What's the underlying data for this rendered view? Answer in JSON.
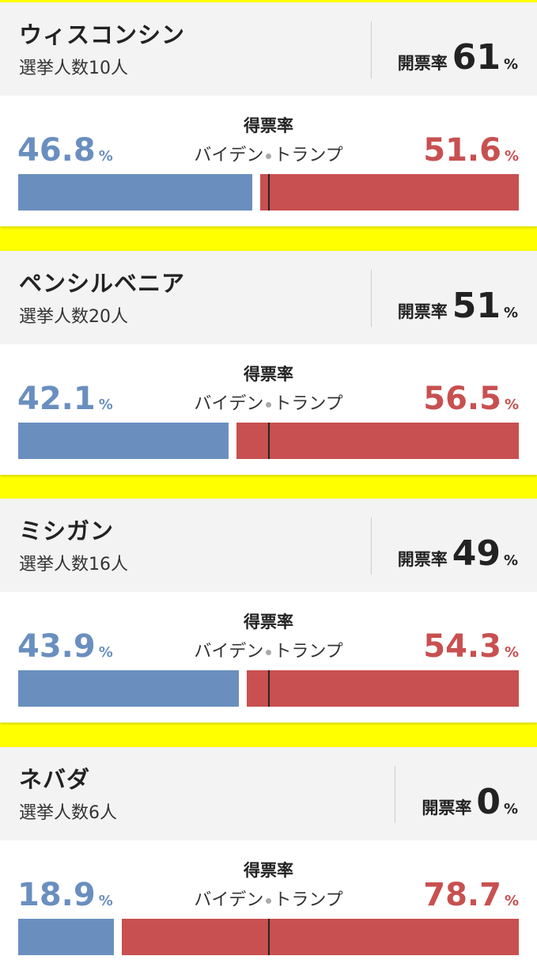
{
  "colors": {
    "biden": "#6a8fbf",
    "trump": "#c85050",
    "highlight": "#ffff00"
  },
  "labels": {
    "vs_title": "得票率",
    "biden": "バイデン",
    "trump": "トランプ",
    "counted_label": "開票率",
    "pct": "%"
  },
  "chart_data": [
    {
      "type": "bar",
      "title": "ウィスコンシン",
      "subtitle": "選挙人数10人",
      "counted": "61",
      "series": [
        {
          "name": "バイデン",
          "values": [
            46.8
          ]
        },
        {
          "name": "トランプ",
          "values": [
            51.6
          ]
        }
      ],
      "biden": "46.8",
      "trump": "51.6"
    },
    {
      "type": "bar",
      "title": "ペンシルベニア",
      "subtitle": "選挙人数20人",
      "counted": "51",
      "series": [
        {
          "name": "バイデン",
          "values": [
            42.1
          ]
        },
        {
          "name": "トランプ",
          "values": [
            56.5
          ]
        }
      ],
      "biden": "42.1",
      "trump": "56.5"
    },
    {
      "type": "bar",
      "title": "ミシガン",
      "subtitle": "選挙人数16人",
      "counted": "49",
      "series": [
        {
          "name": "バイデン",
          "values": [
            43.9
          ]
        },
        {
          "name": "トランプ",
          "values": [
            54.3
          ]
        }
      ],
      "biden": "43.9",
      "trump": "54.3"
    },
    {
      "type": "bar",
      "title": "ネバダ",
      "subtitle": "選挙人数6人",
      "counted": "0",
      "series": [
        {
          "name": "バイデン",
          "values": [
            18.9
          ]
        },
        {
          "name": "トランプ",
          "values": [
            78.7
          ]
        }
      ],
      "biden": "18.9",
      "trump": "78.7"
    }
  ]
}
